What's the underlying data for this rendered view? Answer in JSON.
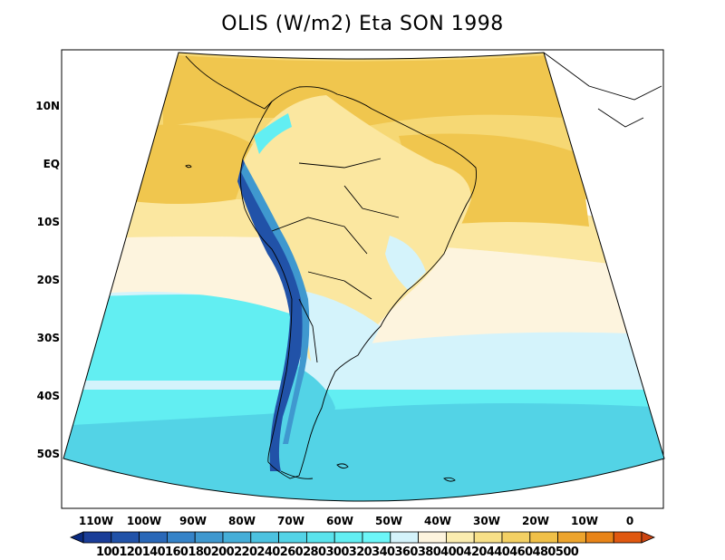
{
  "title": "OLIS (W/m2) Eta SON 1998",
  "lat_labels": [
    "10N",
    "EQ",
    "10S",
    "20S",
    "30S",
    "40S",
    "50S"
  ],
  "lon_labels": [
    "110W",
    "100W",
    "90W",
    "80W",
    "70W",
    "60W",
    "50W",
    "40W",
    "30W",
    "20W",
    "10W",
    "0"
  ],
  "colorbar": {
    "levels": [
      "100",
      "120",
      "140",
      "160",
      "180",
      "200",
      "220",
      "240",
      "260",
      "280",
      "300",
      "320",
      "340",
      "360",
      "380",
      "400",
      "420",
      "440",
      "460",
      "480",
      "500"
    ],
    "colors": [
      "#0a2a80",
      "#1a3d98",
      "#2152a8",
      "#2a68b8",
      "#3583c8",
      "#3f98cf",
      "#45aed8",
      "#4cc2e0",
      "#53d3e6",
      "#5ae3ec",
      "#62eef2",
      "#6cf6f8",
      "#d4f3fb",
      "#fdf4de",
      "#fbedb0",
      "#f7e088",
      "#f3d064",
      "#f0c048",
      "#eda42d",
      "#e88418",
      "#e05810",
      "#cc4410"
    ]
  },
  "field_colors": {
    "sky_blue": "#d4f3fb",
    "cream": "#fdf4de",
    "light_yellow": "#fbe7a0",
    "yellow": "#f6d874",
    "gold": "#f0c64e",
    "cyan": "#62eef2",
    "teal": "#4cc2e0",
    "andes_dark": "#2152a8"
  }
}
